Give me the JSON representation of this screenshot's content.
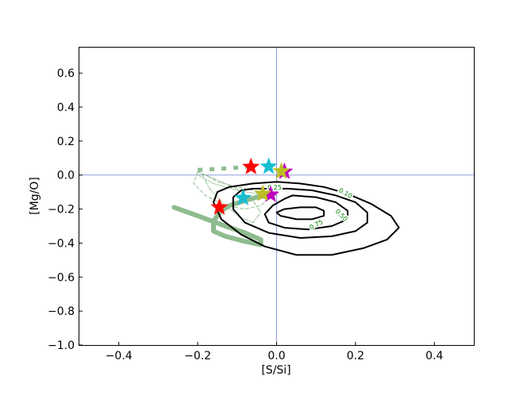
{
  "chart_data": {
    "type": "line",
    "xlabel": "[S/Si]",
    "ylabel": "[Mg/O]",
    "xlim": [
      -0.5,
      0.5
    ],
    "ylim": [
      -1.0,
      0.75
    ],
    "x_ticks": [
      -0.4,
      -0.2,
      0.0,
      0.2,
      0.4
    ],
    "x_tick_labels": [
      "−0.4",
      "−0.2",
      "0.0",
      "0.2",
      "0.4"
    ],
    "y_ticks": [
      0.6,
      0.4,
      0.2,
      0.0,
      -0.2,
      -0.4,
      -0.6,
      -0.8,
      -1.0
    ],
    "y_tick_labels": [
      "0.6",
      "0.4",
      "0.2",
      "0.0",
      "−0.2",
      "−0.4",
      "−0.6",
      "−0.8",
      "−1.0"
    ],
    "reference_lines": {
      "x": 0.0,
      "y": 0.0,
      "color": "#6f7fd8"
    },
    "contours": [
      {
        "level": "0.10",
        "color": "#000000",
        "points": [
          [
            -0.12,
            -0.07
          ],
          [
            -0.06,
            -0.05
          ],
          [
            0.0,
            -0.04
          ],
          [
            0.06,
            -0.05
          ],
          [
            0.12,
            -0.07
          ],
          [
            0.18,
            -0.11
          ],
          [
            0.24,
            -0.17
          ],
          [
            0.29,
            -0.24
          ],
          [
            0.31,
            -0.31
          ],
          [
            0.28,
            -0.38
          ],
          [
            0.22,
            -0.43
          ],
          [
            0.14,
            -0.47
          ],
          [
            0.05,
            -0.47
          ],
          [
            -0.03,
            -0.42
          ],
          [
            -0.09,
            -0.35
          ],
          [
            -0.14,
            -0.26
          ],
          [
            -0.16,
            -0.16
          ],
          [
            -0.15,
            -0.1
          ],
          [
            -0.12,
            -0.07
          ]
        ]
      },
      {
        "level": "0.25",
        "color": "#000000",
        "points": [
          [
            -0.09,
            -0.09
          ],
          [
            -0.06,
            -0.08
          ],
          [
            -0.03,
            -0.08
          ],
          [
            0.03,
            -0.08
          ],
          [
            0.09,
            -0.09
          ],
          [
            0.15,
            -0.12
          ],
          [
            0.2,
            -0.16
          ],
          [
            0.23,
            -0.22
          ],
          [
            0.23,
            -0.28
          ],
          [
            0.2,
            -0.33
          ],
          [
            0.14,
            -0.36
          ],
          [
            0.06,
            -0.37
          ],
          [
            -0.02,
            -0.34
          ],
          [
            -0.08,
            -0.28
          ],
          [
            -0.11,
            -0.2
          ],
          [
            -0.11,
            -0.13
          ],
          [
            -0.09,
            -0.09
          ]
        ]
      },
      {
        "level": "0.50",
        "color": "#000000",
        "points": [
          [
            0.04,
            -0.12
          ],
          [
            0.1,
            -0.13
          ],
          [
            0.15,
            -0.16
          ],
          [
            0.18,
            -0.21
          ],
          [
            0.18,
            -0.26
          ],
          [
            0.14,
            -0.3
          ],
          [
            0.08,
            -0.32
          ],
          [
            0.02,
            -0.31
          ],
          [
            -0.02,
            -0.28
          ],
          [
            -0.03,
            -0.23
          ],
          [
            -0.01,
            -0.18
          ],
          [
            0.02,
            -0.14
          ],
          [
            0.04,
            -0.12
          ]
        ]
      },
      {
        "level": "0.75",
        "color": "#000000",
        "points": [
          [
            0.06,
            -0.19
          ],
          [
            0.1,
            -0.19
          ],
          [
            0.12,
            -0.21
          ],
          [
            0.12,
            -0.24
          ],
          [
            0.09,
            -0.26
          ],
          [
            0.05,
            -0.26
          ],
          [
            0.01,
            -0.24
          ],
          [
            0.0,
            -0.22
          ],
          [
            0.02,
            -0.2
          ],
          [
            0.06,
            -0.19
          ]
        ]
      }
    ],
    "contour_labels": [
      {
        "text": "0.10",
        "x": 0.175,
        "y": -0.105,
        "angle": 30
      },
      {
        "text": "0.25",
        "x": -0.005,
        "y": -0.072,
        "angle": 0
      },
      {
        "text": "0.50",
        "x": 0.165,
        "y": -0.235,
        "angle": 45
      },
      {
        "text": "0.75",
        "x": 0.1,
        "y": -0.29,
        "angle": -28
      }
    ],
    "model_tracks": [
      {
        "style": "thick-solid",
        "color": "#8fbc8f",
        "width": 6,
        "points": [
          [
            -0.26,
            -0.19
          ],
          [
            -0.2,
            -0.24
          ],
          [
            -0.13,
            -0.3
          ],
          [
            -0.08,
            -0.34
          ],
          [
            -0.04,
            -0.38
          ],
          [
            -0.04,
            -0.41
          ],
          [
            -0.08,
            -0.39
          ],
          [
            -0.13,
            -0.36
          ],
          [
            -0.16,
            -0.33
          ],
          [
            -0.16,
            -0.27
          ],
          [
            -0.14,
            -0.21
          ],
          [
            -0.12,
            -0.18
          ],
          [
            -0.08,
            -0.15
          ],
          [
            -0.05,
            -0.13
          ],
          [
            -0.02,
            -0.12
          ]
        ]
      },
      {
        "style": "thick-dashed",
        "color": "#8fbc8f",
        "width": 5,
        "points": [
          [
            -0.2,
            0.03
          ],
          [
            -0.16,
            0.035
          ],
          [
            -0.12,
            0.04
          ],
          [
            -0.08,
            0.048
          ],
          [
            -0.06,
            0.05
          ]
        ]
      },
      {
        "style": "thin-dashed",
        "color": "#8fbc8f",
        "width": 1,
        "points": [
          [
            -0.2,
            0.02
          ],
          [
            -0.21,
            -0.05
          ],
          [
            -0.18,
            -0.12
          ],
          [
            -0.13,
            -0.18
          ],
          [
            -0.08,
            -0.2
          ],
          [
            -0.04,
            -0.18
          ],
          [
            -0.02,
            -0.14
          ],
          [
            -0.04,
            -0.1
          ],
          [
            -0.1,
            -0.07
          ],
          [
            -0.15,
            -0.04
          ],
          [
            -0.18,
            0.0
          ],
          [
            -0.2,
            0.02
          ]
        ]
      },
      {
        "style": "thin-dashdot",
        "color": "#8fbc8f",
        "width": 1,
        "points": [
          [
            -0.19,
            0.01
          ],
          [
            -0.17,
            -0.08
          ],
          [
            -0.13,
            -0.18
          ],
          [
            -0.09,
            -0.25
          ],
          [
            -0.06,
            -0.28
          ],
          [
            -0.04,
            -0.22
          ],
          [
            -0.06,
            -0.15
          ],
          [
            -0.1,
            -0.08
          ],
          [
            -0.15,
            -0.03
          ],
          [
            -0.19,
            0.01
          ]
        ]
      },
      {
        "style": "thin-dotted",
        "color": "#8fbc8f",
        "width": 1.2,
        "points": [
          [
            -0.2,
            0.0
          ],
          [
            -0.16,
            -0.05
          ],
          [
            -0.1,
            -0.09
          ],
          [
            -0.05,
            -0.11
          ],
          [
            -0.02,
            -0.12
          ],
          [
            0.0,
            -0.12
          ]
        ]
      }
    ],
    "stars": [
      {
        "x": -0.065,
        "y": 0.048,
        "color": "#ff0000"
      },
      {
        "x": -0.02,
        "y": 0.05,
        "color": "#17becf"
      },
      {
        "x": 0.02,
        "y": 0.02,
        "color": "#bf00bf"
      },
      {
        "x": 0.012,
        "y": 0.022,
        "color": "#bcbd22"
      },
      {
        "x": -0.145,
        "y": -0.19,
        "color": "#ff0000"
      },
      {
        "x": -0.085,
        "y": -0.135,
        "color": "#17becf"
      },
      {
        "x": -0.015,
        "y": -0.115,
        "color": "#bf00bf"
      },
      {
        "x": -0.035,
        "y": -0.11,
        "color": "#bcbd22"
      }
    ]
  }
}
